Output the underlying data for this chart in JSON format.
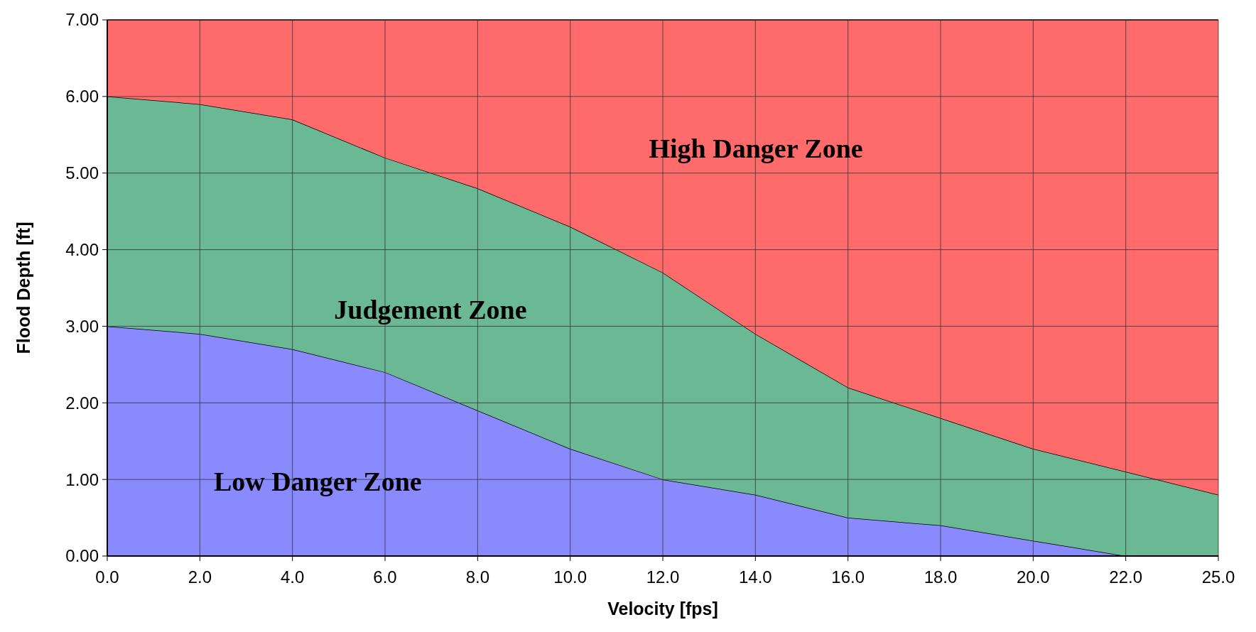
{
  "chart_data": {
    "type": "area",
    "stacked": true,
    "xlabel": "Velocity [fps]",
    "ylabel": "Flood Depth [ft]",
    "categories": [
      "0.0",
      "2.0",
      "4.0",
      "6.0",
      "8.0",
      "10.0",
      "12.0",
      "14.0",
      "16.0",
      "18.0",
      "20.0",
      "22.0",
      "25.0"
    ],
    "series": [
      {
        "name": "Low Danger Zone",
        "color": "#8a8aff",
        "values": [
          3.0,
          2.9,
          2.7,
          2.4,
          1.9,
          1.4,
          1.0,
          0.8,
          0.5,
          0.4,
          0.2,
          0.0,
          0.0
        ]
      },
      {
        "name": "Judgement Zone",
        "color": "#6ab894",
        "values": [
          3.0,
          3.0,
          3.0,
          2.8,
          2.9,
          2.9,
          2.7,
          2.1,
          1.7,
          1.4,
          1.2,
          1.1,
          0.8
        ]
      },
      {
        "name": "High Danger Zone",
        "color": "#ff6a6a",
        "values": [
          1.0,
          1.1,
          1.3,
          1.8,
          2.2,
          2.7,
          3.3,
          4.1,
          4.8,
          5.2,
          5.6,
          5.9,
          6.2
        ]
      }
    ],
    "ylim": [
      0,
      7
    ],
    "yticks": [
      {
        "value": 0,
        "label": "0.00"
      },
      {
        "value": 1,
        "label": "1.00"
      },
      {
        "value": 2,
        "label": "2.00"
      },
      {
        "value": 3,
        "label": "3.00"
      },
      {
        "value": 4,
        "label": "4.00"
      },
      {
        "value": 5,
        "label": "5.00"
      },
      {
        "value": 6,
        "label": "6.00"
      },
      {
        "value": 7,
        "label": "7.00"
      }
    ],
    "grid": true
  }
}
